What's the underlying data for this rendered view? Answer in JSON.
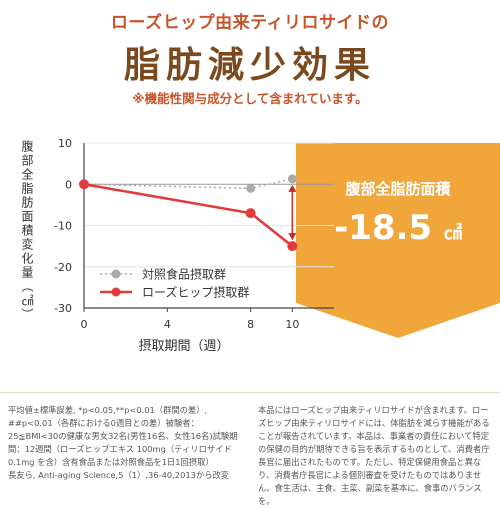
{
  "header": {
    "subtitle": "ローズヒップ由来ティリロサイドの",
    "title": "脂肪減少効果",
    "note": "※機能性関与成分として含まれています。"
  },
  "callout": {
    "title": "腹部全脂肪面積",
    "value": "-18.5",
    "unit": "㎠",
    "bg_color": "#f0a63a"
  },
  "chart_data": {
    "type": "line",
    "xlabel": "摂取期間（週）",
    "ylabel": "腹部全脂肪面積変化量（㎠）",
    "x": [
      0,
      4,
      8,
      10
    ],
    "xticks": [
      "0",
      "4",
      "8",
      "10"
    ],
    "yticks": [
      "10",
      "0",
      "-10",
      "-20",
      "-30"
    ],
    "xlim": [
      0,
      12
    ],
    "ylim": [
      -30,
      10
    ],
    "series": [
      {
        "name": "対照食品摂取群",
        "x": [
          0,
          8,
          10
        ],
        "values": [
          0,
          -1,
          1.3
        ],
        "color": "#aaaaaa",
        "style": "dotted"
      },
      {
        "name": "ローズヒップ摂取群",
        "x": [
          0,
          8,
          10
        ],
        "values": [
          0,
          -7,
          -15
        ],
        "color": "#e03a3a",
        "style": "solid"
      }
    ]
  },
  "footnote_left": "平均値±標準誤差, *p<0.05,**p<0.01（群間の差）, ##p<0.01（各群における0週目との差）被験者：25≦BMI<30の健康な男女32名(男性16名、女性16名)試験期間：12週間（ローズヒップエキス 100mg（ティリロサイド 0.1mg を含）含有食品または対照食品を1日1回摂取）\n長友ら, Anti-aging Science,5（1）,36-40,2013から改変",
  "footnote_right": "本品にはローズヒップ由来ティリロサイドが含まれます。ローズヒップ由来ティリロサイドには、体脂肪を減らす機能があることが報告されています。本品は、事業者の責任において特定の保健の目的が期待できる旨を表示するものとして、消費者庁長官に届出されたものです。ただし、特定保健用食品と異なり、消費者庁長官による個別審査を受けたものではありません。食生活は、主食、主菜、副菜を基本に、食事のバランスを。"
}
